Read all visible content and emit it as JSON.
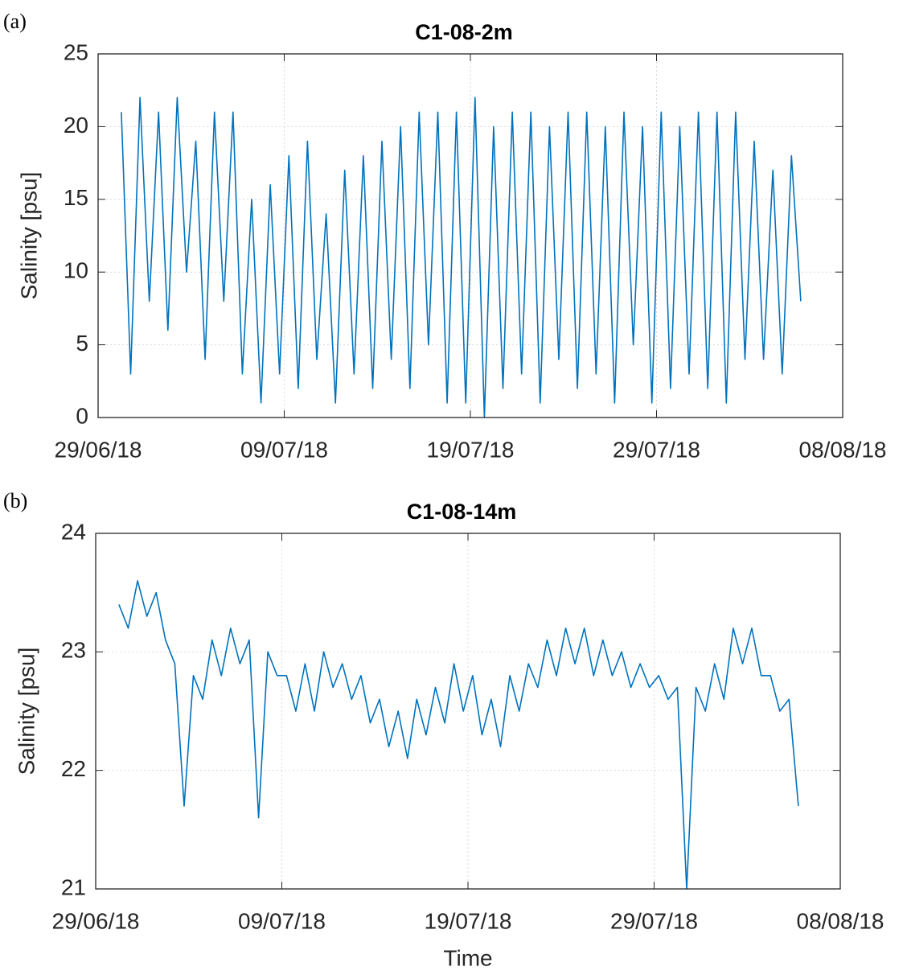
{
  "chart_data": [
    {
      "type": "line",
      "panel_label": "(a)",
      "title": "C1-08-2m",
      "ylabel": "Salinity [psu]",
      "color": "#0072bd",
      "grid": true,
      "xlim": [
        "2018-06-29T00:00Z",
        "2018-08-08T00:00Z"
      ],
      "xticks": [
        {
          "value": "2018-06-29T00:00Z",
          "label": "29/06/18"
        },
        {
          "value": "2018-07-09T00:00Z",
          "label": "09/07/18"
        },
        {
          "value": "2018-07-19T00:00Z",
          "label": "19/07/18"
        },
        {
          "value": "2018-07-29T00:00Z",
          "label": "29/07/18"
        },
        {
          "value": "2018-08-08T00:00Z",
          "label": "08/08/18"
        }
      ],
      "ylim": [
        0,
        25
      ],
      "yticks": [
        0,
        5,
        10,
        15,
        20,
        25
      ],
      "x": [
        "2018-06-30T06:00Z",
        "2018-06-30T18:00Z",
        "2018-07-01T06:00Z",
        "2018-07-01T18:00Z",
        "2018-07-02T06:00Z",
        "2018-07-02T18:00Z",
        "2018-07-03T06:00Z",
        "2018-07-03T18:00Z",
        "2018-07-04T06:00Z",
        "2018-07-04T18:00Z",
        "2018-07-05T06:00Z",
        "2018-07-05T18:00Z",
        "2018-07-06T06:00Z",
        "2018-07-06T18:00Z",
        "2018-07-07T06:00Z",
        "2018-07-07T18:00Z",
        "2018-07-08T06:00Z",
        "2018-07-08T18:00Z",
        "2018-07-09T06:00Z",
        "2018-07-09T18:00Z",
        "2018-07-10T06:00Z",
        "2018-07-10T18:00Z",
        "2018-07-11T06:00Z",
        "2018-07-11T18:00Z",
        "2018-07-12T06:00Z",
        "2018-07-12T18:00Z",
        "2018-07-13T06:00Z",
        "2018-07-13T18:00Z",
        "2018-07-14T06:00Z",
        "2018-07-14T18:00Z",
        "2018-07-15T06:00Z",
        "2018-07-15T18:00Z",
        "2018-07-16T06:00Z",
        "2018-07-16T18:00Z",
        "2018-07-17T06:00Z",
        "2018-07-17T18:00Z",
        "2018-07-18T06:00Z",
        "2018-07-18T18:00Z",
        "2018-07-19T06:00Z",
        "2018-07-19T18:00Z",
        "2018-07-20T06:00Z",
        "2018-07-20T18:00Z",
        "2018-07-21T06:00Z",
        "2018-07-21T18:00Z",
        "2018-07-22T06:00Z",
        "2018-07-22T18:00Z",
        "2018-07-23T06:00Z",
        "2018-07-23T18:00Z",
        "2018-07-24T06:00Z",
        "2018-07-24T18:00Z",
        "2018-07-25T06:00Z",
        "2018-07-25T18:00Z",
        "2018-07-26T06:00Z",
        "2018-07-26T18:00Z",
        "2018-07-27T06:00Z",
        "2018-07-27T18:00Z",
        "2018-07-28T06:00Z",
        "2018-07-28T18:00Z",
        "2018-07-29T06:00Z",
        "2018-07-29T18:00Z",
        "2018-07-30T06:00Z",
        "2018-07-30T18:00Z",
        "2018-07-31T06:00Z",
        "2018-07-31T18:00Z",
        "2018-08-01T06:00Z",
        "2018-08-01T18:00Z",
        "2018-08-02T06:00Z",
        "2018-08-02T18:00Z",
        "2018-08-03T06:00Z",
        "2018-08-03T18:00Z",
        "2018-08-04T06:00Z",
        "2018-08-04T18:00Z",
        "2018-08-05T06:00Z",
        "2018-08-05T18:00Z"
      ],
      "values": [
        21,
        3,
        22,
        8,
        21,
        6,
        22,
        10,
        19,
        4,
        21,
        8,
        21,
        3,
        15,
        1,
        16,
        3,
        18,
        2,
        19,
        4,
        14,
        1,
        17,
        3,
        18,
        2,
        19,
        4,
        20,
        2,
        21,
        5,
        21,
        1,
        21,
        1,
        22,
        0,
        20,
        2,
        21,
        3,
        21,
        1,
        20,
        4,
        21,
        2,
        21,
        3,
        20,
        1,
        21,
        5,
        20,
        1,
        21,
        2,
        20,
        3,
        21,
        2,
        21,
        1,
        21,
        4,
        19,
        4,
        17,
        3,
        18,
        8
      ]
    },
    {
      "type": "line",
      "panel_label": "(b)",
      "title": "C1-08-14m",
      "ylabel": "Salinity [psu]",
      "xlabel": "Time",
      "color": "#0072bd",
      "grid": true,
      "xlim": [
        "2018-06-29T00:00Z",
        "2018-08-08T00:00Z"
      ],
      "xticks": [
        {
          "value": "2018-06-29T00:00Z",
          "label": "29/06/18"
        },
        {
          "value": "2018-07-09T00:00Z",
          "label": "09/07/18"
        },
        {
          "value": "2018-07-19T00:00Z",
          "label": "19/07/18"
        },
        {
          "value": "2018-07-29T00:00Z",
          "label": "29/07/18"
        },
        {
          "value": "2018-08-08T00:00Z",
          "label": "08/08/18"
        }
      ],
      "ylim": [
        21,
        24
      ],
      "yticks": [
        21,
        22,
        23,
        24
      ],
      "x": [
        "2018-06-30T06:00Z",
        "2018-06-30T18:00Z",
        "2018-07-01T06:00Z",
        "2018-07-01T18:00Z",
        "2018-07-02T06:00Z",
        "2018-07-02T18:00Z",
        "2018-07-03T06:00Z",
        "2018-07-03T18:00Z",
        "2018-07-04T06:00Z",
        "2018-07-04T18:00Z",
        "2018-07-05T06:00Z",
        "2018-07-05T18:00Z",
        "2018-07-06T06:00Z",
        "2018-07-06T18:00Z",
        "2018-07-07T06:00Z",
        "2018-07-07T18:00Z",
        "2018-07-08T06:00Z",
        "2018-07-08T18:00Z",
        "2018-07-09T06:00Z",
        "2018-07-09T18:00Z",
        "2018-07-10T06:00Z",
        "2018-07-10T18:00Z",
        "2018-07-11T06:00Z",
        "2018-07-11T18:00Z",
        "2018-07-12T06:00Z",
        "2018-07-12T18:00Z",
        "2018-07-13T06:00Z",
        "2018-07-13T18:00Z",
        "2018-07-14T06:00Z",
        "2018-07-14T18:00Z",
        "2018-07-15T06:00Z",
        "2018-07-15T18:00Z",
        "2018-07-16T06:00Z",
        "2018-07-16T18:00Z",
        "2018-07-17T06:00Z",
        "2018-07-17T18:00Z",
        "2018-07-18T06:00Z",
        "2018-07-18T18:00Z",
        "2018-07-19T06:00Z",
        "2018-07-19T18:00Z",
        "2018-07-20T06:00Z",
        "2018-07-20T18:00Z",
        "2018-07-21T06:00Z",
        "2018-07-21T18:00Z",
        "2018-07-22T06:00Z",
        "2018-07-22T18:00Z",
        "2018-07-23T06:00Z",
        "2018-07-23T18:00Z",
        "2018-07-24T06:00Z",
        "2018-07-24T18:00Z",
        "2018-07-25T06:00Z",
        "2018-07-25T18:00Z",
        "2018-07-26T06:00Z",
        "2018-07-26T18:00Z",
        "2018-07-27T06:00Z",
        "2018-07-27T18:00Z",
        "2018-07-28T06:00Z",
        "2018-07-28T18:00Z",
        "2018-07-29T06:00Z",
        "2018-07-29T18:00Z",
        "2018-07-30T06:00Z",
        "2018-07-30T18:00Z",
        "2018-07-31T06:00Z",
        "2018-07-31T18:00Z",
        "2018-08-01T06:00Z",
        "2018-08-01T18:00Z",
        "2018-08-02T06:00Z",
        "2018-08-02T18:00Z",
        "2018-08-03T06:00Z",
        "2018-08-03T18:00Z",
        "2018-08-04T06:00Z",
        "2018-08-04T18:00Z",
        "2018-08-05T06:00Z",
        "2018-08-05T18:00Z"
      ],
      "values": [
        23.4,
        23.2,
        23.6,
        23.3,
        23.5,
        23.1,
        22.9,
        21.7,
        22.8,
        22.6,
        23.1,
        22.8,
        23.2,
        22.9,
        23.1,
        21.6,
        23.0,
        22.8,
        22.8,
        22.5,
        22.9,
        22.5,
        23.0,
        22.7,
        22.9,
        22.6,
        22.8,
        22.4,
        22.6,
        22.2,
        22.5,
        22.1,
        22.6,
        22.3,
        22.7,
        22.4,
        22.9,
        22.5,
        22.8,
        22.3,
        22.6,
        22.2,
        22.8,
        22.5,
        22.9,
        22.7,
        23.1,
        22.8,
        23.2,
        22.9,
        23.2,
        22.8,
        23.1,
        22.8,
        23.0,
        22.7,
        22.9,
        22.7,
        22.8,
        22.6,
        22.7,
        21.0,
        22.7,
        22.5,
        22.9,
        22.6,
        23.2,
        22.9,
        23.2,
        22.8,
        22.8,
        22.5,
        22.6,
        21.7
      ]
    }
  ]
}
